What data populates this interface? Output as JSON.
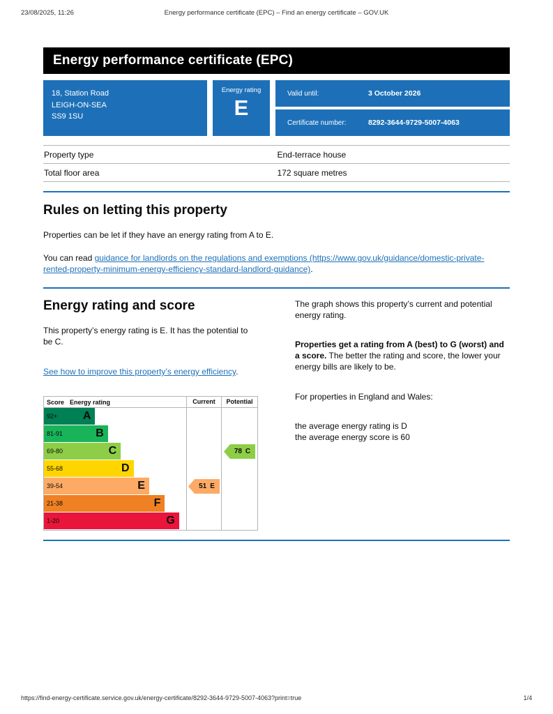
{
  "print_header": {
    "timestamp": "23/08/2025, 11:26",
    "title": "Energy performance certificate (EPC) – Find an energy certificate – GOV.UK"
  },
  "print_footer": {
    "url": "https://find-energy-certificate.service.gov.uk/energy-certificate/8292-3644-9729-5007-4063?print=true",
    "page_number": "1/4"
  },
  "banner": {
    "title": "Energy performance certificate (EPC)"
  },
  "summary": {
    "address_lines": [
      "18, Station Road",
      "LEIGH-ON-SEA",
      "SS9 1SU"
    ],
    "energy_rating_label": "Energy rating",
    "energy_rating_value": "E",
    "valid_until_label": "Valid until:",
    "valid_until_value": "3 October 2026",
    "certificate_number_label": "Certificate number:",
    "certificate_number_value": "8292-3644-9729-5007-4063"
  },
  "property_table": {
    "rows": [
      {
        "label": "Property type",
        "value": "End-terrace house"
      },
      {
        "label": "Total floor area",
        "value": "172 square metres"
      }
    ]
  },
  "rules_section": {
    "heading": "Rules on letting this property",
    "paragraph1": "Properties can be let if they have an energy rating from A to E.",
    "paragraph2_prefix": "You can read ",
    "landlord_guidance_link": "guidance for landlords on the regulations and exemptions (https://www.gov.uk/guidance/domestic-private-rented-property-minimum-energy-efficiency-standard-landlord-guidance)",
    "paragraph2_suffix": "."
  },
  "rating_section": {
    "heading": "Energy rating and score",
    "paragraph1": "This property’s energy rating is E. It has the potential to be C.",
    "improve_link": "See how to improve this property’s energy efficiency",
    "improve_link_suffix": "."
  },
  "graph_explanation": {
    "paragraph1": "The graph shows this property’s current and potential energy rating.",
    "paragraph2_bold": "Properties get a rating from A (best) to G (worst) and a score.",
    "paragraph2_rest": " The better the rating and score, the lower your energy bills are likely to be.",
    "paragraph3": "For properties in England and Wales:",
    "average_rating_line": "the average energy rating is D",
    "average_score_line": "the average energy score is 60"
  },
  "chart_data": {
    "type": "bar",
    "variant": "epc-energy-rating-bands",
    "headers": {
      "score": "Score",
      "rating": "Energy rating",
      "current": "Current",
      "potential": "Potential"
    },
    "bands": [
      {
        "score_range": "92+",
        "letter": "A",
        "color": "#008054",
        "width_pct": 36
      },
      {
        "score_range": "81-91",
        "letter": "B",
        "color": "#19b459",
        "width_pct": 45
      },
      {
        "score_range": "69-80",
        "letter": "C",
        "color": "#8dce46",
        "width_pct": 54
      },
      {
        "score_range": "55-68",
        "letter": "D",
        "color": "#ffd500",
        "width_pct": 63
      },
      {
        "score_range": "39-54",
        "letter": "E",
        "color": "#fcaa65",
        "width_pct": 74
      },
      {
        "score_range": "21-38",
        "letter": "F",
        "color": "#ef8023",
        "width_pct": 85
      },
      {
        "score_range": "1-20",
        "letter": "G",
        "color": "#e9153b",
        "width_pct": 95
      }
    ],
    "current": {
      "score": 51,
      "letter": "E",
      "band_index": 4,
      "color": "#fcaa65"
    },
    "potential": {
      "score": 78,
      "letter": "C",
      "band_index": 2,
      "color": "#8dce46"
    }
  },
  "colors": {
    "govuk_blue": "#1d70b8",
    "banner_black": "#000000",
    "border_grey": "#b1b4b6"
  }
}
